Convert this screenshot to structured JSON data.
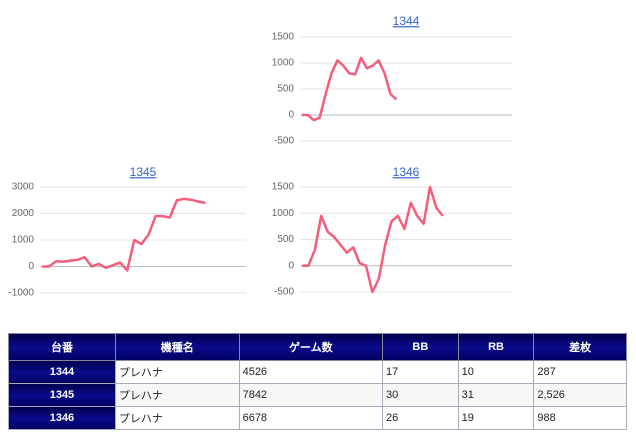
{
  "chart_data": [
    {
      "type": "line",
      "title": "1344",
      "color": "#f45d7c",
      "values": [
        0,
        0,
        -100,
        -50,
        400,
        800,
        1050,
        950,
        800,
        780,
        1100,
        900,
        950,
        1050,
        800,
        400,
        300
      ],
      "ylim": [
        -500,
        1500
      ],
      "yticks": [
        -500,
        0,
        500,
        1000,
        1500
      ],
      "grid": true
    },
    {
      "type": "line",
      "title": "1345",
      "color": "#f45d7c",
      "values": [
        0,
        0,
        200,
        180,
        220,
        250,
        350,
        0,
        100,
        -50,
        50,
        150,
        -150,
        1000,
        850,
        1200,
        1900,
        1900,
        1850,
        2500,
        2550,
        2520,
        2450,
        2400
      ],
      "ylim": [
        -1000,
        3000
      ],
      "yticks": [
        -1000,
        0,
        1000,
        2000,
        3000
      ],
      "grid": true
    },
    {
      "type": "line",
      "title": "1346",
      "color": "#f45d7c",
      "values": [
        0,
        0,
        300,
        950,
        650,
        550,
        400,
        250,
        350,
        50,
        0,
        -500,
        -250,
        400,
        850,
        950,
        700,
        1200,
        950,
        800,
        1500,
        1100,
        950
      ],
      "ylim": [
        -500,
        1500
      ],
      "yticks": [
        -500,
        0,
        500,
        1000,
        1500
      ],
      "grid": true
    }
  ],
  "table": {
    "header": [
      "台番",
      "機種名",
      "ゲーム数",
      "BB",
      "RB",
      "差枚"
    ],
    "rows": [
      [
        "1344",
        "プレハナ",
        "4526",
        "17",
        "10",
        "287"
      ],
      [
        "1345",
        "プレハナ",
        "7842",
        "30",
        "31",
        "2,526"
      ],
      [
        "1346",
        "プレハナ",
        "6678",
        "26",
        "19",
        "988"
      ]
    ]
  }
}
